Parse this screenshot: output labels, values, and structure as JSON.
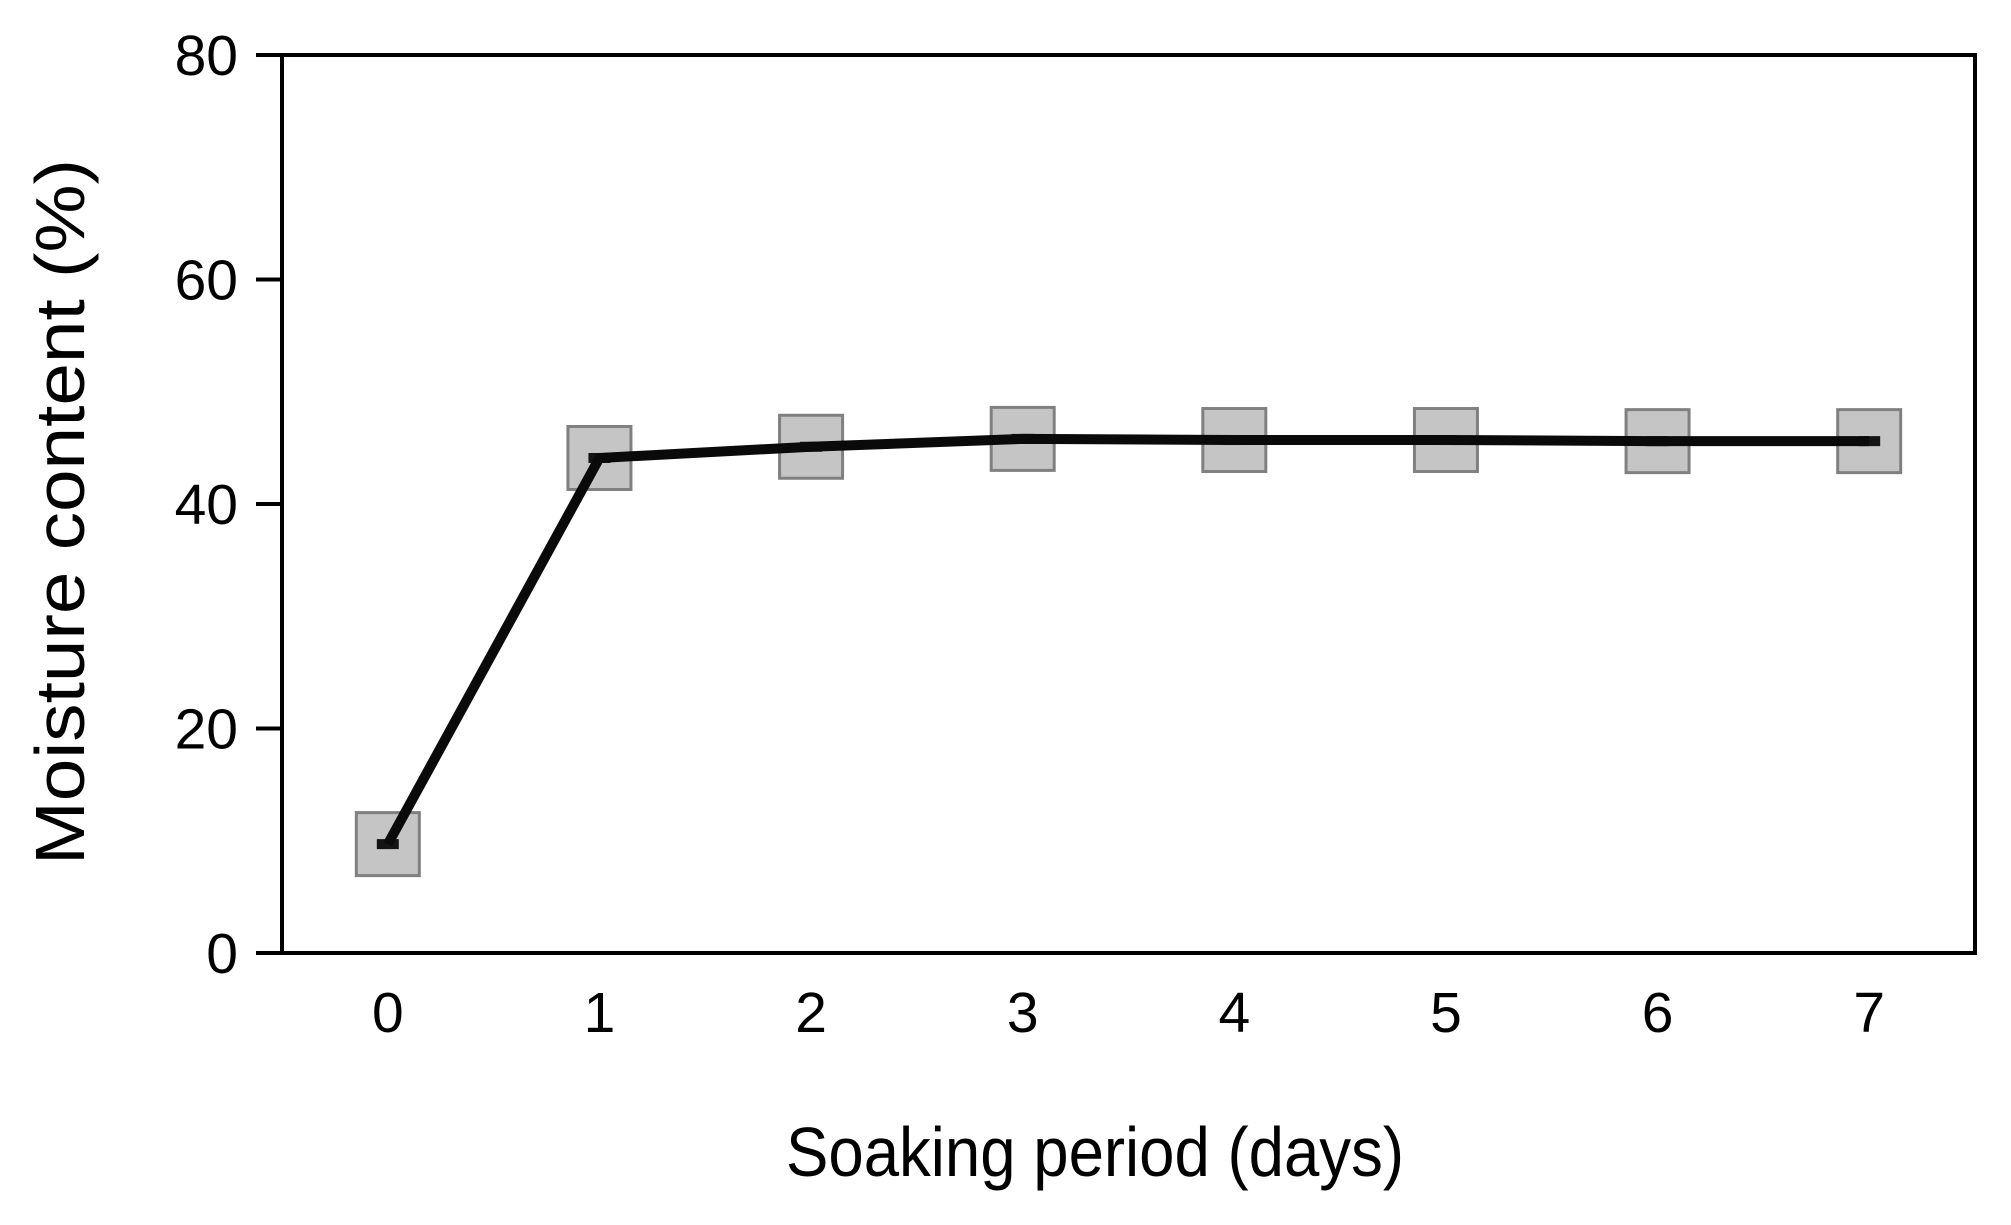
{
  "chart_data": {
    "type": "line",
    "title": "",
    "xlabel": "Soaking period (days)",
    "ylabel": "Moisture content (%)",
    "x": [
      0,
      1,
      2,
      3,
      4,
      5,
      6,
      7
    ],
    "series": [
      {
        "name": "Moisture content",
        "values": [
          9.7,
          44.1,
          45.1,
          45.8,
          45.7,
          45.7,
          45.6,
          45.6
        ]
      }
    ],
    "xtick_labels": [
      "0",
      "1",
      "2",
      "3",
      "4",
      "5",
      "6",
      "7"
    ],
    "ytick_values": [
      0,
      20,
      40,
      60,
      80
    ],
    "ytick_labels": [
      "0",
      "20",
      "40",
      "60",
      "80"
    ],
    "xlim": [
      -0.5,
      7.5
    ],
    "ylim": [
      0,
      80
    ],
    "grid": false,
    "legend": "none",
    "marker": "square",
    "colors": {
      "line": "#0a0a0a",
      "marker_fill": "#c5c5c5",
      "marker_stroke": "#808080",
      "center_dash": "#141414",
      "axis": "#000000",
      "background": "#ffffff"
    }
  }
}
